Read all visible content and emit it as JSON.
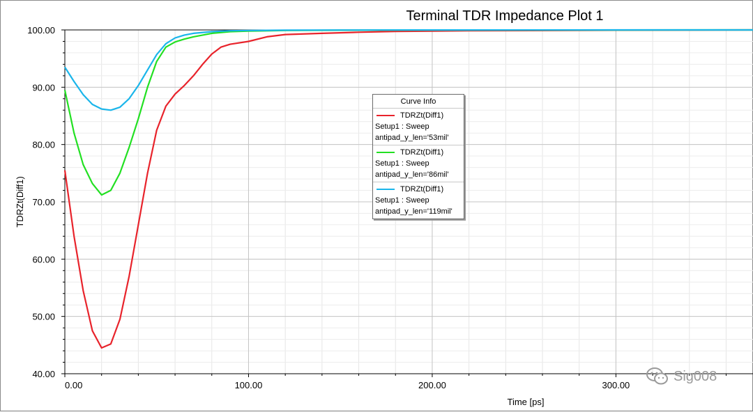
{
  "chart_data": {
    "type": "line",
    "title": "Terminal TDR Impedance Plot 1",
    "xlabel": "Time [ps]",
    "ylabel": "TDRZt(Diff1)",
    "xlim": [
      0,
      375
    ],
    "ylim": [
      40,
      100
    ],
    "x_ticks": [
      "0.00",
      "100.00",
      "200.00",
      "300.00"
    ],
    "x_tick_values": [
      0,
      100,
      200,
      300
    ],
    "y_ticks": [
      "40.00",
      "50.00",
      "60.00",
      "70.00",
      "80.00",
      "90.00",
      "100.00"
    ],
    "y_tick_values": [
      40,
      50,
      60,
      70,
      80,
      90,
      100
    ],
    "grid": true,
    "legend_title": "Curve Info",
    "legend_placement": "center",
    "series": [
      {
        "name": "TDRZt(Diff1)",
        "setup": "Setup1 : Sweep",
        "param": "antipad_y_len='53mil'",
        "color": "#e8232b",
        "x": [
          0,
          5,
          10,
          15,
          20,
          25,
          30,
          35,
          40,
          45,
          50,
          55,
          60,
          65,
          70,
          75,
          80,
          85,
          90,
          100,
          110,
          120,
          140,
          160,
          180,
          220,
          300,
          375
        ],
        "y": [
          75.5,
          64,
          54.5,
          47.5,
          44.5,
          45.2,
          49.5,
          57,
          66,
          75,
          82.5,
          86.7,
          88.8,
          90.3,
          92,
          94,
          95.8,
          97,
          97.5,
          98,
          98.8,
          99.2,
          99.4,
          99.6,
          99.75,
          99.85,
          99.95,
          100
        ]
      },
      {
        "name": "TDRZt(Diff1)",
        "setup": "Setup1 : Sweep",
        "param": "antipad_y_len='86mil'",
        "color": "#22e022",
        "x": [
          0,
          5,
          10,
          15,
          20,
          25,
          30,
          35,
          40,
          45,
          50,
          55,
          60,
          65,
          70,
          80,
          90,
          100,
          120,
          150,
          200,
          300,
          375
        ],
        "y": [
          89.5,
          82,
          76.5,
          73.2,
          71.2,
          72,
          75,
          79.5,
          84.5,
          90,
          94.5,
          97,
          97.9,
          98.4,
          98.8,
          99.4,
          99.7,
          99.8,
          99.9,
          99.95,
          99.97,
          99.99,
          100
        ]
      },
      {
        "name": "TDRZt(Diff1)",
        "setup": "Setup1 : Sweep",
        "param": "antipad_y_len='119mil'",
        "color": "#1ab5ea",
        "x": [
          0,
          5,
          10,
          15,
          20,
          25,
          30,
          35,
          40,
          45,
          50,
          55,
          60,
          65,
          70,
          80,
          90,
          100,
          120,
          150,
          200,
          300,
          375
        ],
        "y": [
          93.5,
          91,
          88.7,
          87,
          86.2,
          86,
          86.5,
          88,
          90.3,
          93,
          95.7,
          97.6,
          98.6,
          99.1,
          99.4,
          99.7,
          99.85,
          99.9,
          99.95,
          99.98,
          99.99,
          100,
          100
        ]
      }
    ]
  },
  "watermark": {
    "text": "Sig008",
    "icon": "wechat-icon"
  }
}
